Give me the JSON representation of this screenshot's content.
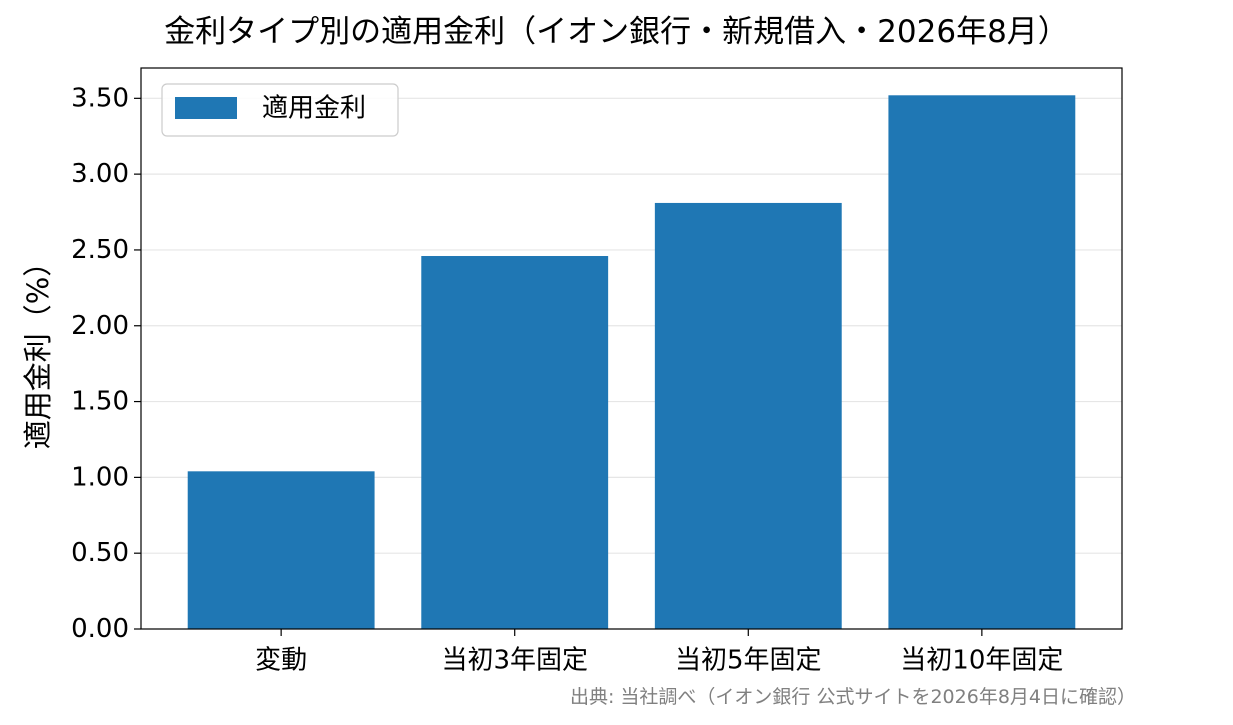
{
  "chart_data": {
    "type": "bar",
    "title": "金利タイプ別の適用金利（イオン銀行・新規借入・2026年8月）",
    "xlabel": "",
    "ylabel": "適用金利（%）",
    "categories": [
      "変動",
      "当初3年固定",
      "当初5年固定",
      "当初10年固定"
    ],
    "series": [
      {
        "name": "適用金利",
        "values": [
          1.04,
          2.46,
          2.81,
          3.52
        ],
        "color": "#1f77b4"
      }
    ],
    "ylim": [
      0,
      3.7
    ],
    "yticks": [
      "0.00",
      "0.50",
      "1.00",
      "1.50",
      "2.00",
      "2.50",
      "3.00",
      "3.50"
    ],
    "grid": "horizontal",
    "legend_position": "top-left",
    "source": "出典: 当社調べ（イオン銀行 公式サイトを2026年8月4日に確認）"
  }
}
